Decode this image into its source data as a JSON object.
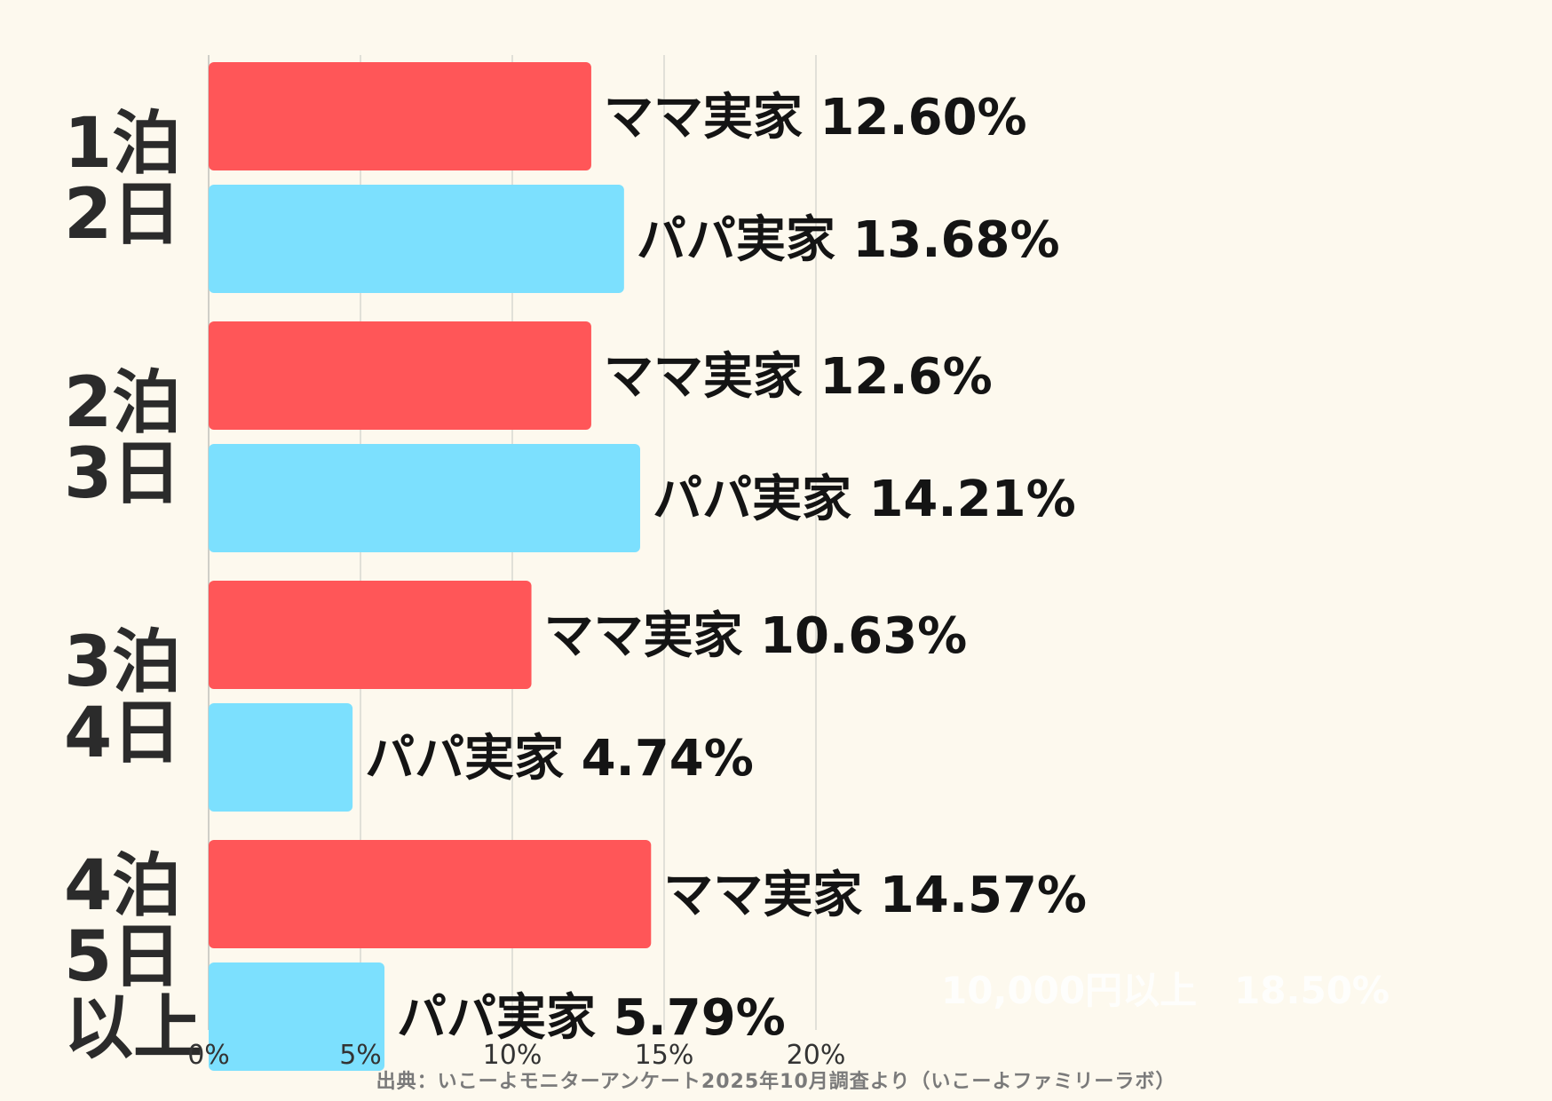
{
  "chart_data": {
    "type": "bar",
    "orientation": "horizontal",
    "categories": [
      [
        "1泊",
        "2日"
      ],
      [
        "2泊",
        "3日"
      ],
      [
        "3泊",
        "4日"
      ],
      [
        "4泊",
        "5日",
        "以上"
      ]
    ],
    "series": [
      {
        "color": "#ff5658",
        "values": [
          12.6,
          12.6,
          10.63,
          14.57
        ],
        "labels": [
          "ママ実家 12.60%",
          "ママ実家  12.6%",
          "ママ実家 10.63%",
          "ママ実家 14.57%"
        ]
      },
      {
        "color": "#7ce0fe",
        "values": [
          13.68,
          14.21,
          4.74,
          5.79
        ],
        "labels": [
          "パパ実家  13.68%",
          "パパ実家 14.21%",
          "パパ実家 4.74%",
          "パパ実家  5.79%"
        ]
      }
    ],
    "xlim": [
      0,
      25
    ],
    "xticks": [
      0,
      5,
      10,
      15,
      20
    ],
    "xtick_labels": [
      "0%",
      "5%",
      "10%",
      "15%",
      "20%"
    ],
    "grid": true,
    "legend": "none",
    "watermark_text": "10,000円以上　18.50%"
  },
  "footer": {
    "source": "出典：いこーよモニターアンケート2025年10月調査より（いこーよファミリーラボ）"
  }
}
